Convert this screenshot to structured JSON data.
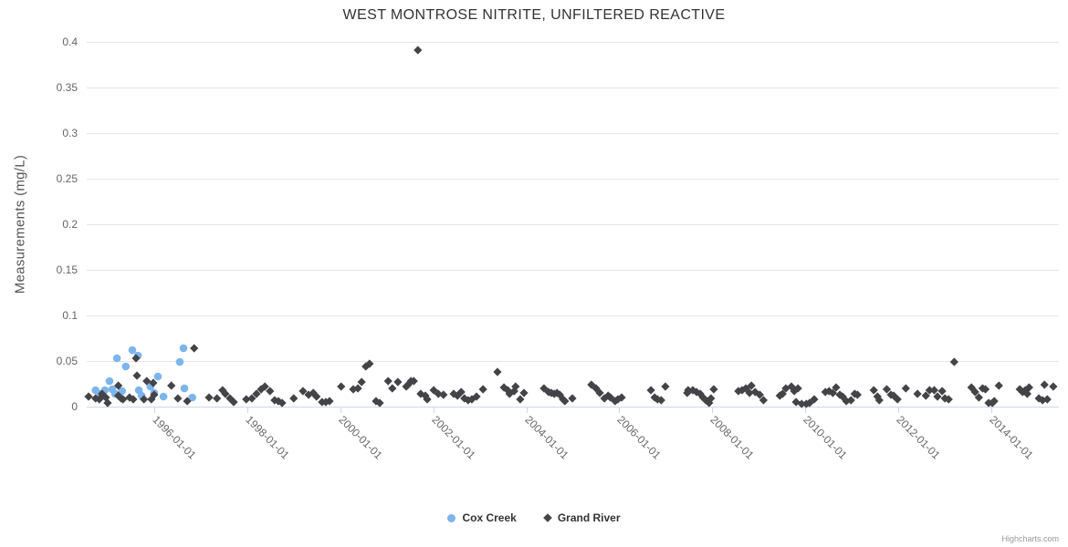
{
  "credits": "Highcharts.com",
  "colors": {
    "background": "#ffffff",
    "cox_creek": "#7cb5ec",
    "grand_river": "#434348",
    "grid": "#e6e6e6",
    "axis_line": "#ccd6eb",
    "title_text": "#333333",
    "axis_text": "#666666",
    "y_title_text": "#555555",
    "legend_text": "#333333",
    "credits_text": "#999999"
  },
  "chart_data": {
    "type": "scatter",
    "title": "WEST MONTROSE NITRITE, UNFILTERED REACTIVE",
    "xlabel": "",
    "ylabel": "Measurements (mg/L)",
    "ylim": [
      0,
      0.4
    ],
    "xlim": [
      1994.55,
      2015.45
    ],
    "grid": "horizontal",
    "legend_position": "bottom",
    "yticks": [
      0,
      0.05,
      0.1,
      0.15,
      0.2,
      0.25,
      0.3,
      0.35,
      0.4
    ],
    "ytick_labels": [
      "0",
      "0.05",
      "0.1",
      "0.15",
      "0.2",
      "0.25",
      "0.3",
      "0.35",
      "0.4"
    ],
    "xticks": [
      1996,
      1998,
      2000,
      2002,
      2004,
      2006,
      2008,
      2010,
      2012,
      2014
    ],
    "xtick_labels": [
      "1996-01-01",
      "1998-01-01",
      "2000-01-01",
      "2002-01-01",
      "2004-01-01",
      "2006-01-01",
      "2008-01-01",
      "2010-01-01",
      "2012-01-01",
      "2014-01-01"
    ],
    "series": [
      {
        "name": "Cox Creek",
        "marker": "circle",
        "color": "#7cb5ec",
        "points": [
          [
            1994.74,
            0.018
          ],
          [
            1994.84,
            0.014
          ],
          [
            1994.94,
            0.018
          ],
          [
            1995.04,
            0.028
          ],
          [
            1995.1,
            0.019
          ],
          [
            1995.16,
            0.014
          ],
          [
            1995.2,
            0.053
          ],
          [
            1995.31,
            0.017
          ],
          [
            1995.39,
            0.044
          ],
          [
            1995.53,
            0.062
          ],
          [
            1995.65,
            0.056
          ],
          [
            1995.67,
            0.018
          ],
          [
            1995.73,
            0.012
          ],
          [
            1995.92,
            0.022
          ],
          [
            1996.0,
            0.015
          ],
          [
            1996.08,
            0.033
          ],
          [
            1996.2,
            0.011
          ],
          [
            1996.55,
            0.049
          ],
          [
            1996.63,
            0.064
          ],
          [
            1996.65,
            0.02
          ],
          [
            1996.82,
            0.01
          ]
        ]
      },
      {
        "name": "Grand River",
        "marker": "diamond",
        "color": "#434348",
        "points": [
          [
            1994.59,
            0.011
          ],
          [
            1994.74,
            0.009
          ],
          [
            1994.82,
            0.008
          ],
          [
            1994.88,
            0.014
          ],
          [
            1994.96,
            0.01
          ],
          [
            1995.0,
            0.004
          ],
          [
            1995.23,
            0.023
          ],
          [
            1995.23,
            0.012
          ],
          [
            1995.29,
            0.009
          ],
          [
            1995.33,
            0.008
          ],
          [
            1995.47,
            0.01
          ],
          [
            1995.55,
            0.008
          ],
          [
            1995.61,
            0.053
          ],
          [
            1995.63,
            0.034
          ],
          [
            1995.78,
            0.008
          ],
          [
            1995.84,
            0.028
          ],
          [
            1995.94,
            0.008
          ],
          [
            1995.98,
            0.026
          ],
          [
            1996.0,
            0.013
          ],
          [
            1996.37,
            0.023
          ],
          [
            1996.51,
            0.009
          ],
          [
            1996.71,
            0.006
          ],
          [
            1996.86,
            0.064
          ],
          [
            1997.18,
            0.01
          ],
          [
            1997.35,
            0.009
          ],
          [
            1997.47,
            0.018
          ],
          [
            1997.53,
            0.014
          ],
          [
            1997.63,
            0.009
          ],
          [
            1997.71,
            0.005
          ],
          [
            1997.98,
            0.008
          ],
          [
            1998.1,
            0.009
          ],
          [
            1998.2,
            0.014
          ],
          [
            1998.3,
            0.019
          ],
          [
            1998.38,
            0.022
          ],
          [
            1998.49,
            0.017
          ],
          [
            1998.59,
            0.007
          ],
          [
            1998.67,
            0.006
          ],
          [
            1998.75,
            0.004
          ],
          [
            1999.0,
            0.009
          ],
          [
            1999.2,
            0.017
          ],
          [
            1999.32,
            0.013
          ],
          [
            1999.42,
            0.015
          ],
          [
            1999.49,
            0.011
          ],
          [
            1999.61,
            0.005
          ],
          [
            1999.69,
            0.005
          ],
          [
            1999.77,
            0.006
          ],
          [
            2000.02,
            0.022
          ],
          [
            2000.28,
            0.019
          ],
          [
            2000.38,
            0.02
          ],
          [
            2000.46,
            0.027
          ],
          [
            2000.55,
            0.044
          ],
          [
            2000.63,
            0.047
          ],
          [
            2000.77,
            0.006
          ],
          [
            2000.85,
            0.004
          ],
          [
            2001.03,
            0.028
          ],
          [
            2001.12,
            0.02
          ],
          [
            2001.24,
            0.027
          ],
          [
            2001.42,
            0.022
          ],
          [
            2001.46,
            0.024
          ],
          [
            2001.52,
            0.028
          ],
          [
            2001.58,
            0.028
          ],
          [
            2001.67,
            0.391
          ],
          [
            2001.73,
            0.014
          ],
          [
            2001.83,
            0.012
          ],
          [
            2001.87,
            0.008
          ],
          [
            2002.01,
            0.018
          ],
          [
            2002.11,
            0.014
          ],
          [
            2002.22,
            0.013
          ],
          [
            2002.44,
            0.014
          ],
          [
            2002.52,
            0.012
          ],
          [
            2002.6,
            0.016
          ],
          [
            2002.67,
            0.009
          ],
          [
            2002.75,
            0.007
          ],
          [
            2002.83,
            0.008
          ],
          [
            2002.93,
            0.011
          ],
          [
            2003.07,
            0.019
          ],
          [
            2003.38,
            0.038
          ],
          [
            2003.52,
            0.021
          ],
          [
            2003.6,
            0.018
          ],
          [
            2003.64,
            0.014
          ],
          [
            2003.74,
            0.017
          ],
          [
            2003.77,
            0.022
          ],
          [
            2003.87,
            0.008
          ],
          [
            2003.95,
            0.015
          ],
          [
            2004.38,
            0.02
          ],
          [
            2004.48,
            0.016
          ],
          [
            2004.54,
            0.015
          ],
          [
            2004.6,
            0.014
          ],
          [
            2004.66,
            0.015
          ],
          [
            2004.72,
            0.013
          ],
          [
            2004.79,
            0.008
          ],
          [
            2004.83,
            0.006
          ],
          [
            2004.99,
            0.009
          ],
          [
            2005.4,
            0.024
          ],
          [
            2005.5,
            0.02
          ],
          [
            2005.58,
            0.015
          ],
          [
            2005.68,
            0.009
          ],
          [
            2005.76,
            0.012
          ],
          [
            2005.81,
            0.01
          ],
          [
            2005.91,
            0.006
          ],
          [
            2005.97,
            0.008
          ],
          [
            2006.05,
            0.01
          ],
          [
            2006.68,
            0.018
          ],
          [
            2006.76,
            0.01
          ],
          [
            2006.82,
            0.008
          ],
          [
            2006.9,
            0.007
          ],
          [
            2006.99,
            0.022
          ],
          [
            2007.46,
            0.015
          ],
          [
            2007.48,
            0.018
          ],
          [
            2007.58,
            0.018
          ],
          [
            2007.66,
            0.016
          ],
          [
            2007.74,
            0.014
          ],
          [
            2007.8,
            0.01
          ],
          [
            2007.86,
            0.007
          ],
          [
            2007.93,
            0.004
          ],
          [
            2007.97,
            0.009
          ],
          [
            2008.03,
            0.019
          ],
          [
            2008.56,
            0.017
          ],
          [
            2008.64,
            0.018
          ],
          [
            2008.72,
            0.02
          ],
          [
            2008.8,
            0.015
          ],
          [
            2008.84,
            0.023
          ],
          [
            2008.92,
            0.016
          ],
          [
            2009.02,
            0.013
          ],
          [
            2009.1,
            0.007
          ],
          [
            2009.45,
            0.012
          ],
          [
            2009.51,
            0.014
          ],
          [
            2009.58,
            0.02
          ],
          [
            2009.7,
            0.022
          ],
          [
            2009.76,
            0.017
          ],
          [
            2009.8,
            0.005
          ],
          [
            2009.84,
            0.02
          ],
          [
            2009.92,
            0.003
          ],
          [
            2010.02,
            0.003
          ],
          [
            2010.09,
            0.004
          ],
          [
            2010.19,
            0.008
          ],
          [
            2010.43,
            0.016
          ],
          [
            2010.51,
            0.017
          ],
          [
            2010.59,
            0.015
          ],
          [
            2010.66,
            0.021
          ],
          [
            2010.74,
            0.013
          ],
          [
            2010.8,
            0.011
          ],
          [
            2010.88,
            0.006
          ],
          [
            2010.98,
            0.007
          ],
          [
            2011.06,
            0.014
          ],
          [
            2011.12,
            0.013
          ],
          [
            2011.47,
            0.018
          ],
          [
            2011.55,
            0.011
          ],
          [
            2011.59,
            0.007
          ],
          [
            2011.75,
            0.019
          ],
          [
            2011.84,
            0.013
          ],
          [
            2011.9,
            0.012
          ],
          [
            2011.98,
            0.008
          ],
          [
            2012.16,
            0.02
          ],
          [
            2012.41,
            0.014
          ],
          [
            2012.59,
            0.012
          ],
          [
            2012.67,
            0.018
          ],
          [
            2012.77,
            0.018
          ],
          [
            2012.84,
            0.011
          ],
          [
            2012.94,
            0.017
          ],
          [
            2013.0,
            0.009
          ],
          [
            2013.08,
            0.008
          ],
          [
            2013.2,
            0.049
          ],
          [
            2013.57,
            0.021
          ],
          [
            2013.65,
            0.016
          ],
          [
            2013.73,
            0.01
          ],
          [
            2013.81,
            0.02
          ],
          [
            2013.87,
            0.019
          ],
          [
            2013.94,
            0.004
          ],
          [
            2014.02,
            0.004
          ],
          [
            2014.06,
            0.006
          ],
          [
            2014.16,
            0.023
          ],
          [
            2014.61,
            0.019
          ],
          [
            2014.67,
            0.016
          ],
          [
            2014.73,
            0.018
          ],
          [
            2014.77,
            0.014
          ],
          [
            2014.81,
            0.021
          ],
          [
            2015.02,
            0.009
          ],
          [
            2015.1,
            0.007
          ],
          [
            2015.14,
            0.024
          ],
          [
            2015.2,
            0.008
          ],
          [
            2015.33,
            0.022
          ]
        ]
      }
    ]
  }
}
